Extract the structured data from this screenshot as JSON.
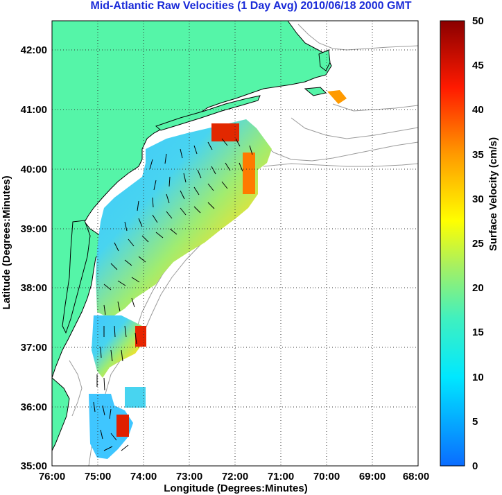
{
  "title": "Mid-Atlantic Raw Velocities (1 Day Avg) 2010/06/18 2000 GMT",
  "xaxis": {
    "label": "Longitude (Degrees:Minutes)",
    "ticks": [
      "76:00",
      "75:00",
      "74:00",
      "73:00",
      "72:00",
      "71:00",
      "70:00",
      "69:00",
      "68:00"
    ]
  },
  "yaxis": {
    "label": "Latitude (Degrees:Minutes)",
    "ticks": [
      "42:00",
      "41:00",
      "40:00",
      "39:00",
      "38:00",
      "37:00",
      "36:00",
      "35:00"
    ]
  },
  "colorbar": {
    "label": "Surface Velocity (cm/s)",
    "ticks": [
      "50",
      "45",
      "40",
      "35",
      "30",
      "25",
      "20",
      "15",
      "10",
      "5",
      "0"
    ],
    "range": [
      0,
      50
    ]
  },
  "colors": {
    "land": "#55f5a8",
    "coast": "#000000",
    "bathymetry": "#9a9a9a",
    "title": "#1a2bd8"
  },
  "map_extent": {
    "lon": [
      -76,
      -68
    ],
    "lat": [
      35,
      42.5
    ]
  },
  "grid": true
}
